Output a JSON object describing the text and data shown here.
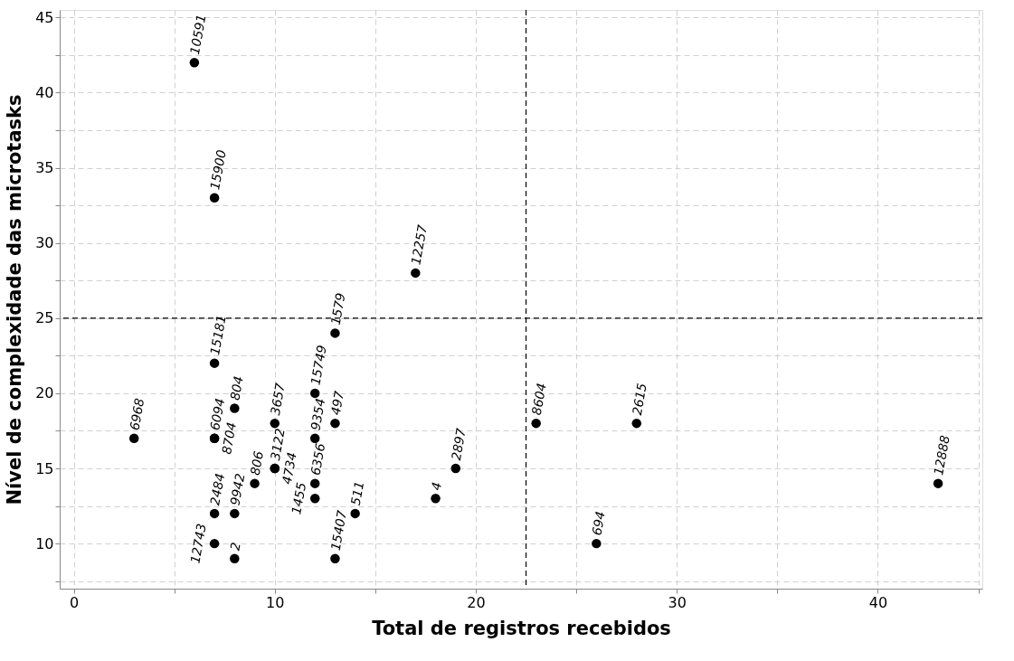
{
  "chart_data": {
    "type": "scatter",
    "xlabel": "Total de registros recebidos",
    "ylabel": "Nível de complexidade das microtasks",
    "x": [
      6,
      7,
      17,
      13,
      7,
      12,
      8,
      10,
      13,
      23,
      28,
      3,
      7,
      7,
      12,
      10,
      10,
      19,
      9,
      12,
      43,
      12,
      18,
      7,
      8,
      14,
      7,
      26,
      8,
      13
    ],
    "series": [
      {
        "color": "#000000",
        "values": [
          42,
          33,
          28,
          24,
          22,
          20,
          19,
          18,
          18,
          18,
          18,
          17,
          17,
          17,
          17,
          15,
          15,
          15,
          14,
          14,
          14,
          13,
          13,
          12,
          12,
          12,
          10,
          10,
          9,
          9
        ]
      }
    ],
    "annotations": [
      {
        "text": "10591",
        "x": 6,
        "y": 42
      },
      {
        "text": "15900",
        "x": 7,
        "y": 33
      },
      {
        "text": "12257",
        "x": 17,
        "y": 28
      },
      {
        "text": "1579",
        "x": 13,
        "y": 24
      },
      {
        "text": "15181",
        "x": 7,
        "y": 22
      },
      {
        "text": "15749",
        "x": 12,
        "y": 20
      },
      {
        "text": "804",
        "x": 8,
        "y": 19
      },
      {
        "text": "3657",
        "x": 10,
        "y": 18
      },
      {
        "text": "497",
        "x": 13,
        "y": 18
      },
      {
        "text": "8604",
        "x": 23,
        "y": 18
      },
      {
        "text": "2615",
        "x": 28,
        "y": 18
      },
      {
        "text": "6968",
        "x": 3,
        "y": 17
      },
      {
        "text": "6094",
        "x": 7,
        "y": 17
      },
      {
        "text": "8704",
        "x": 7,
        "y": 17
      },
      {
        "text": "9354",
        "x": 12,
        "y": 17
      },
      {
        "text": "3122",
        "x": 10,
        "y": 15
      },
      {
        "text": "4734",
        "x": 10,
        "y": 15
      },
      {
        "text": "2897",
        "x": 19,
        "y": 15
      },
      {
        "text": "806",
        "x": 9,
        "y": 14
      },
      {
        "text": "6356",
        "x": 12,
        "y": 14
      },
      {
        "text": "12888",
        "x": 43,
        "y": 14
      },
      {
        "text": "1455",
        "x": 12,
        "y": 13
      },
      {
        "text": "4",
        "x": 18,
        "y": 13
      },
      {
        "text": "2484",
        "x": 7,
        "y": 12
      },
      {
        "text": "9942",
        "x": 8,
        "y": 12
      },
      {
        "text": "511",
        "x": 14,
        "y": 12
      },
      {
        "text": "12743",
        "x": 7,
        "y": 10
      },
      {
        "text": "694",
        "x": 26,
        "y": 10
      },
      {
        "text": "2",
        "x": 8,
        "y": 9
      },
      {
        "text": "15407",
        "x": 13,
        "y": 9
      }
    ],
    "xlim": [
      -0.7,
      45.2
    ],
    "ylim": [
      7,
      45.5
    ],
    "xticks": [
      0,
      {
        "value": 5,
        "label": null
      },
      10,
      {
        "value": 15,
        "label": null
      },
      20,
      {
        "value": 25,
        "label": null
      },
      30,
      {
        "value": 35,
        "label": null
      },
      40,
      {
        "value": 45,
        "label": null
      }
    ],
    "yticks": [
      {
        "value": 7.5,
        "label": null
      },
      10,
      {
        "value": 12.5,
        "label": null
      },
      15,
      {
        "value": 17.5,
        "label": null
      },
      20,
      {
        "value": 22.5,
        "label": null
      },
      25,
      {
        "value": 27.5,
        "label": null
      },
      30,
      {
        "value": 32.5,
        "label": null
      },
      35,
      {
        "value": 37.5,
        "label": null
      },
      40,
      {
        "value": 42.5,
        "label": null
      },
      45
    ],
    "ref_lines": [
      {
        "axis": "x",
        "value": 22.5,
        "color": "#000000",
        "line_style": "dashed"
      },
      {
        "axis": "y",
        "value": 25,
        "color": "#000000",
        "line_style": "dashed"
      }
    ],
    "grid": true,
    "marker": "circle"
  }
}
